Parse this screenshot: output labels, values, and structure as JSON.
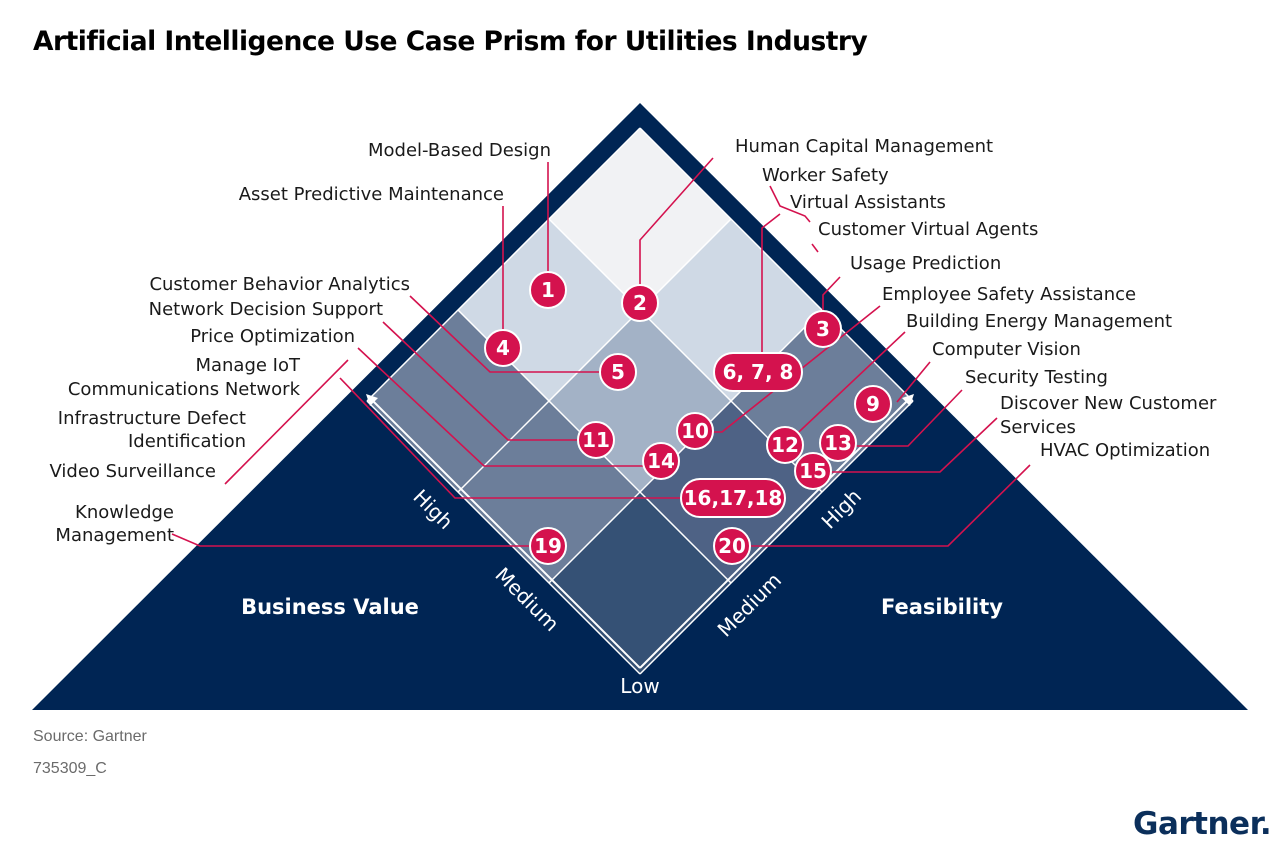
{
  "title": "Artificial Intelligence Use Case Prism for Utilities Industry",
  "axes": {
    "business_value": "Business Value",
    "feasibility": "Feasibility",
    "high": "High",
    "medium": "Medium",
    "low": "Low"
  },
  "labels": {
    "model_based_design": "Model-Based Design",
    "asset_predictive_maintenance": "Asset Predictive Maintenance",
    "customer_behavior_analytics": "Customer Behavior Analytics",
    "network_decision_support": "Network Decision Support",
    "price_optimization": "Price Optimization",
    "manage_iot_1": "Manage IoT",
    "manage_iot_2": "Communications Network",
    "infra_defect_1": "Infrastructure Defect",
    "infra_defect_2": "Identification",
    "video_surveillance": "Video Surveillance",
    "knowledge_1": "Knowledge",
    "knowledge_2": "Management",
    "human_capital_management": "Human Capital Management",
    "worker_safety": "Worker Safety",
    "virtual_assistants": "Virtual Assistants",
    "customer_virtual_agents": "Customer Virtual Agents",
    "usage_prediction": "Usage Prediction",
    "employee_safety_assistance": "Employee Safety Assistance",
    "building_energy_management": "Building Energy Management",
    "computer_vision": "Computer Vision",
    "security_testing": "Security Testing",
    "discover_1": "Discover New Customer",
    "discover_2": "Services",
    "hvac_optimization": "HVAC Optimization"
  },
  "badges": {
    "b1": "1",
    "b2": "2",
    "b3": "3",
    "b4": "4",
    "b5": "5",
    "b678": "6, 7, 8",
    "b9": "9",
    "b10": "10",
    "b11": "11",
    "b12": "12",
    "b13": "13",
    "b14": "14",
    "b15": "15",
    "b161718": "16,17,18",
    "b19": "19",
    "b20": "20"
  },
  "footer": {
    "source": "Source: Gartner",
    "doc_id": "735309_C",
    "logo": "Gartner."
  },
  "colors": {
    "navy": "#002554",
    "badge": "#d4124e",
    "leader": "#d4124e",
    "cell_top": "#f1f2f4",
    "cell_light": "#cfd9e5",
    "cell_mid": "#a3b2c6",
    "cell_dark": "#6c7e9a",
    "cell_darker": "#4e6285",
    "cell_bottom": "#355175"
  }
}
